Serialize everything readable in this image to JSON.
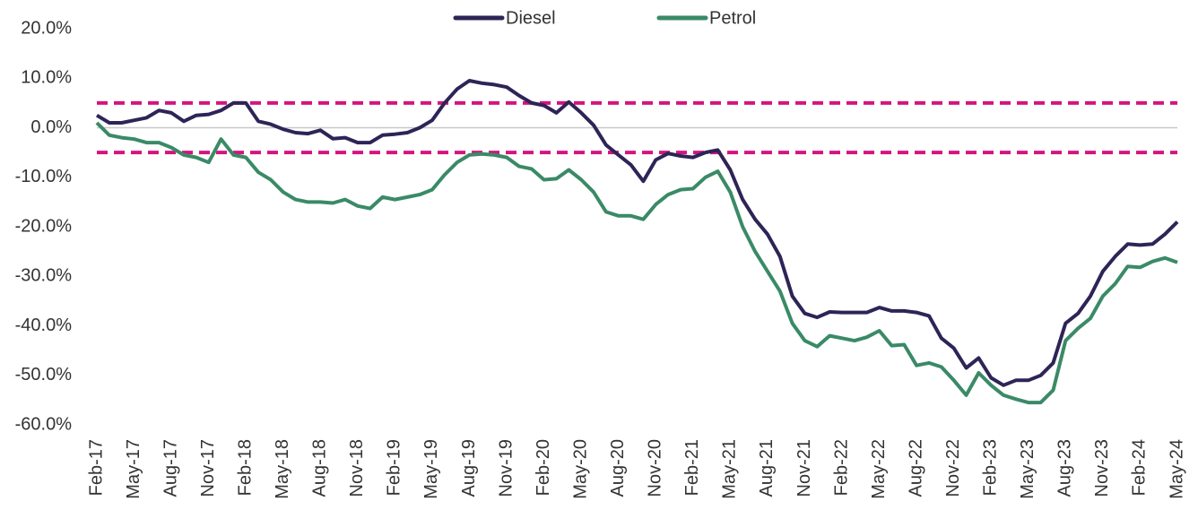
{
  "chart_data": {
    "type": "line",
    "categories": [
      "Feb-17",
      null,
      null,
      "May-17",
      null,
      null,
      "Aug-17",
      null,
      null,
      "Nov-17",
      null,
      null,
      "Feb-18",
      null,
      null,
      "May-18",
      null,
      null,
      "Aug-18",
      null,
      null,
      "Nov-18",
      null,
      null,
      "Feb-19",
      null,
      null,
      "May-19",
      null,
      null,
      "Aug-19",
      null,
      null,
      "Nov-19",
      null,
      null,
      "Feb-20",
      null,
      null,
      "May-20",
      null,
      null,
      "Aug-20",
      null,
      null,
      "Nov-20",
      null,
      null,
      "Feb-21",
      null,
      null,
      "May-21",
      null,
      null,
      "Aug-21",
      null,
      null,
      "Nov-21",
      null,
      null,
      "Feb-22",
      null,
      null,
      "May-22",
      null,
      null,
      "Aug-22",
      null,
      null,
      "Nov-22",
      null,
      null,
      "Feb-23",
      null,
      null,
      "May-23",
      null,
      null,
      "Aug-23",
      null,
      null,
      "Nov-23",
      null,
      null,
      "Feb-24",
      null,
      null,
      "May-24"
    ],
    "series": [
      {
        "name": "Diesel",
        "color": "#2e2457",
        "values": [
          2.5,
          1,
          1,
          1.5,
          2,
          3.5,
          3,
          1.3,
          2.5,
          2.7,
          3.5,
          5,
          5,
          1.3,
          0.7,
          -0.3,
          -1,
          -1.2,
          -0.5,
          -2.2,
          -2,
          -3,
          -3,
          -1.5,
          -1.3,
          -1,
          0,
          1.5,
          5,
          7.8,
          9.5,
          9,
          8.7,
          8.2,
          6.5,
          5,
          4.5,
          3,
          5.2,
          3,
          0.5,
          -3.5,
          -5.5,
          -7.5,
          -10.8,
          -6.5,
          -5.2,
          -5.7,
          -6,
          -5,
          -4.5,
          -8.5,
          -14.5,
          -18.5,
          -21.5,
          -26,
          -34,
          -37.5,
          -38.3,
          -37.2,
          -37.3,
          -37.3,
          -37.3,
          -36.3,
          -37,
          -37,
          -37.3,
          -38,
          -42.5,
          -44.5,
          -48.5,
          -46.5,
          -50.5,
          -52,
          -51,
          -51,
          -50,
          -47.5,
          -39.5,
          -37.5,
          -34,
          -29,
          -26,
          -23.5,
          -23.7,
          -23.5,
          -21.5,
          -19
        ]
      },
      {
        "name": "Petrol",
        "color": "#3a8a67",
        "values": [
          1,
          -1.5,
          -2,
          -2.3,
          -3,
          -3,
          -4,
          -5.5,
          -6,
          -7,
          -2.3,
          -5.5,
          -6,
          -9,
          -10.5,
          -13,
          -14.5,
          -15,
          -15,
          -15.2,
          -14.5,
          -15.8,
          -16.3,
          -14,
          -14.5,
          -14,
          -13.5,
          -12.5,
          -9.5,
          -7,
          -5.5,
          -5.3,
          -5.5,
          -6,
          -7.8,
          -8.3,
          -10.5,
          -10.3,
          -8.5,
          -10.5,
          -13,
          -17,
          -17.8,
          -17.8,
          -18.5,
          -15.5,
          -13.5,
          -12.5,
          -12.3,
          -10,
          -8.8,
          -13,
          -20,
          -25,
          -29,
          -33,
          -39.5,
          -43,
          -44.2,
          -42,
          -42.5,
          -43,
          -42.3,
          -41,
          -44,
          -43.8,
          -48,
          -47.5,
          -48.3,
          -51,
          -54,
          -49.5,
          -52,
          -54,
          -54.8,
          -55.5,
          -55.5,
          -53,
          -43,
          -40.5,
          -38.5,
          -34,
          -31.5,
          -28,
          -28.2,
          -27,
          -26.3,
          -27.2
        ]
      }
    ],
    "reference_lines": [
      {
        "value": 5,
        "color": "#d4147f"
      },
      {
        "value": -5,
        "color": "#d4147f"
      }
    ],
    "ylim": [
      -60,
      20
    ],
    "yticks": [
      {
        "value": -60,
        "label": "-60.0%"
      },
      {
        "value": -50,
        "label": "-50.0%"
      },
      {
        "value": -40,
        "label": "-40.0%"
      },
      {
        "value": -30,
        "label": "-30.0%"
      },
      {
        "value": -20,
        "label": "-20.0%"
      },
      {
        "value": -10,
        "label": "-10.0%"
      },
      {
        "value": 0,
        "label": "0.0%"
      },
      {
        "value": 10,
        "label": "10.0%"
      },
      {
        "value": 20,
        "label": "20.0%"
      }
    ],
    "legend": "top"
  }
}
